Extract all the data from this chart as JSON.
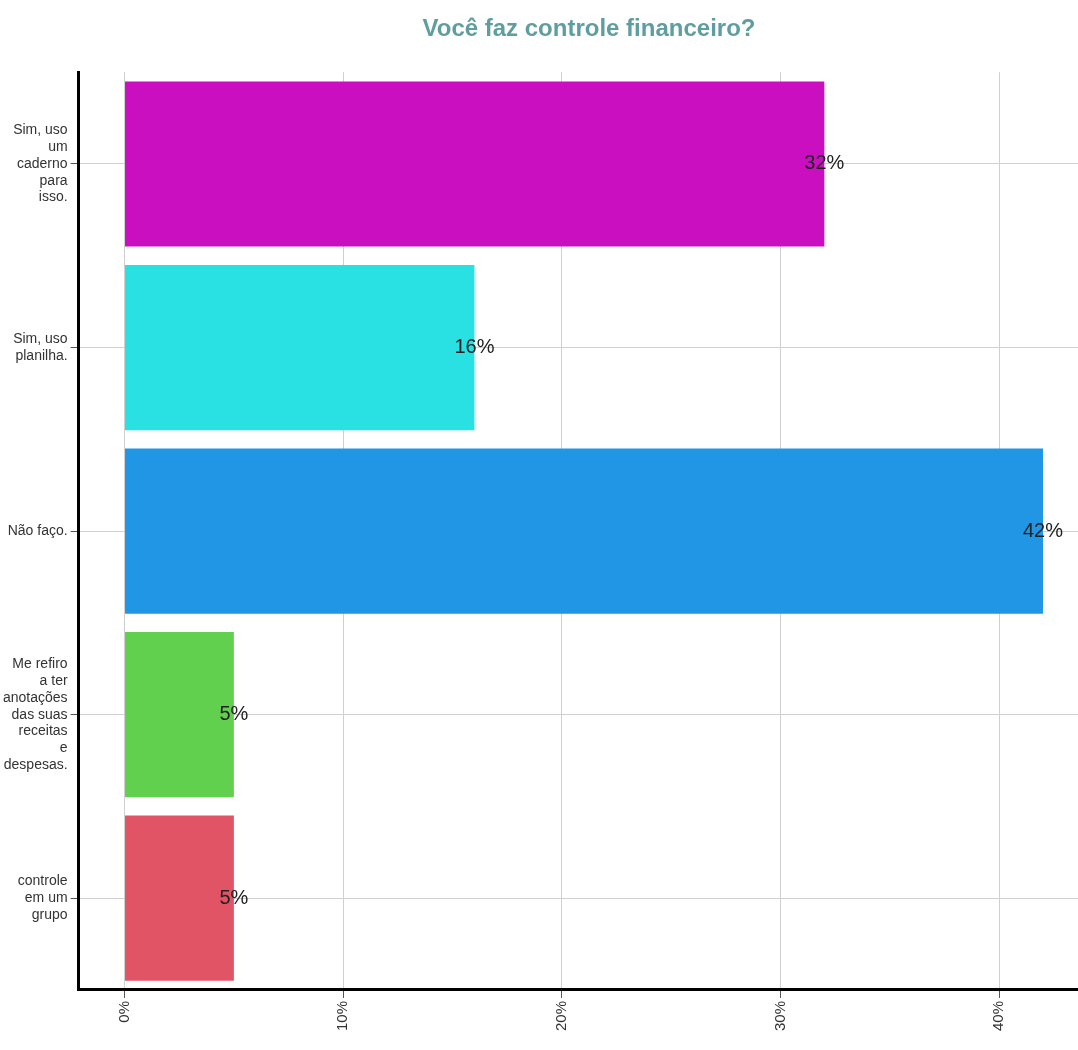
{
  "chart_data": {
    "type": "bar",
    "orientation": "horizontal",
    "title": "Você faz controle financeiro?",
    "categories": [
      "Sim, uso um caderno para isso.",
      "Sim, uso planilha.",
      "Não faço.",
      "Me refiro a ter anotações das suas receitas e despesas.",
      "controle em um grupo"
    ],
    "values": [
      32,
      16,
      42,
      5,
      5
    ],
    "colors": [
      "#c90fbf",
      "#29e0e3",
      "#2196e5",
      "#62d04f",
      "#e05466"
    ],
    "value_labels": [
      "32%",
      "16%",
      "42%",
      "5%",
      "5%"
    ],
    "xlim": [
      -2.1,
      43.6
    ],
    "xticks": [
      {
        "value": 0,
        "label": "0%"
      },
      {
        "value": 10,
        "label": "10%"
      },
      {
        "value": 20,
        "label": "20%"
      },
      {
        "value": 30,
        "label": "30%"
      },
      {
        "value": 40,
        "label": "40%"
      }
    ],
    "grid": true,
    "legend": false
  }
}
